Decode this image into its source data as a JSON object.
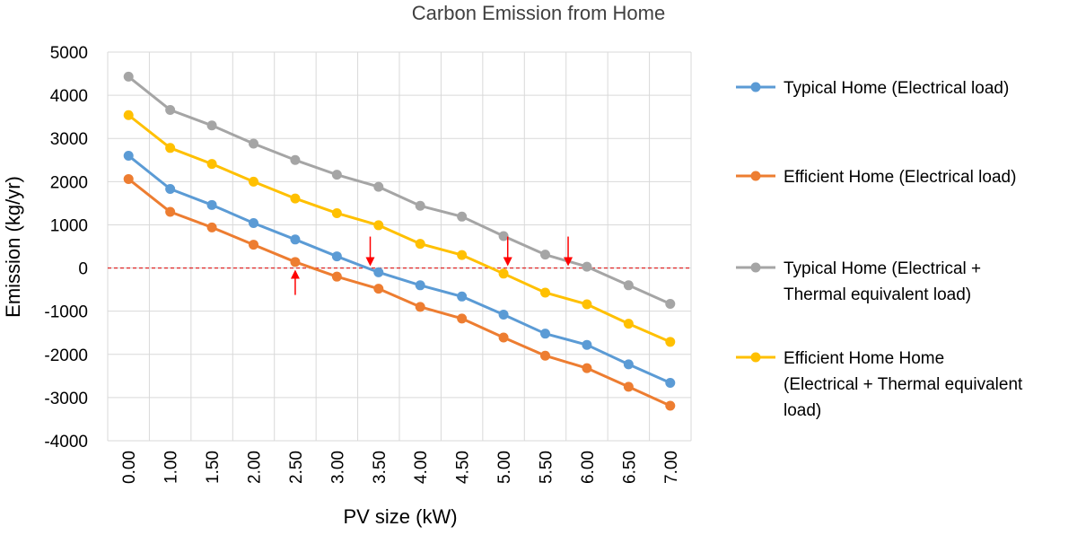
{
  "chart_data": {
    "type": "line",
    "title": "Carbon Emission from Home",
    "xlabel": "PV size (kW)",
    "ylabel": "Emission (kg/yr)",
    "categories": [
      "0.00",
      "1.00",
      "1.50",
      "2.00",
      "2.50",
      "3.00",
      "3.50",
      "4.00",
      "4.50",
      "5.00",
      "5.50",
      "6.00",
      "6.50",
      "7.00"
    ],
    "ylim": [
      -4000,
      5000
    ],
    "yticks": [
      "5000",
      "4000",
      "3000",
      "2000",
      "1000",
      "0",
      "-1000",
      "-2000",
      "-3000",
      "-4000"
    ],
    "grid": true,
    "legend_position": "right",
    "reference_line": {
      "y": 0,
      "color": "#e03030",
      "style": "dashed"
    },
    "series": [
      {
        "name": "Typical Home (Electrical load)",
        "color": "#5b9bd5",
        "values": [
          2600,
          1830,
          1460,
          1040,
          660,
          270,
          -100,
          -400,
          -660,
          -1080,
          -1520,
          -1780,
          -2230,
          -2660
        ]
      },
      {
        "name": "Efficient Home (Electrical load)",
        "color": "#ed7d31",
        "values": [
          2060,
          1300,
          940,
          540,
          140,
          -200,
          -480,
          -900,
          -1170,
          -1610,
          -2030,
          -2320,
          -2750,
          -3190
        ]
      },
      {
        "name": "Typical Home (Electrical + Thermal equivalent load)",
        "color": "#a5a5a5",
        "legend_lines": [
          "Typical Home (Electrical +",
          "Thermal equivalent load)"
        ],
        "values": [
          4430,
          3660,
          3300,
          2880,
          2500,
          2160,
          1880,
          1440,
          1190,
          740,
          310,
          30,
          -400,
          -830
        ]
      },
      {
        "name": "Efficient Home Home (Electrical + Thermal equivalent load)",
        "color": "#ffc000",
        "legend_lines": [
          "Efficient Home Home",
          "(Electrical + Thermal equivalent",
          "load)"
        ],
        "values": [
          3540,
          2780,
          2410,
          2000,
          1610,
          1270,
          990,
          560,
          300,
          -130,
          -570,
          -840,
          -1290,
          -1710
        ]
      }
    ],
    "annotations": [
      {
        "type": "arrow",
        "direction": "up",
        "at_x": 4.5,
        "color": "#ff0000"
      },
      {
        "type": "arrow",
        "direction": "down",
        "at_x": 6.3,
        "color": "#ff0000"
      },
      {
        "type": "arrow",
        "direction": "down",
        "at_x": 9.6,
        "color": "#ff0000"
      },
      {
        "type": "arrow",
        "direction": "down",
        "at_x": 11.05,
        "color": "#ff0000"
      }
    ]
  }
}
